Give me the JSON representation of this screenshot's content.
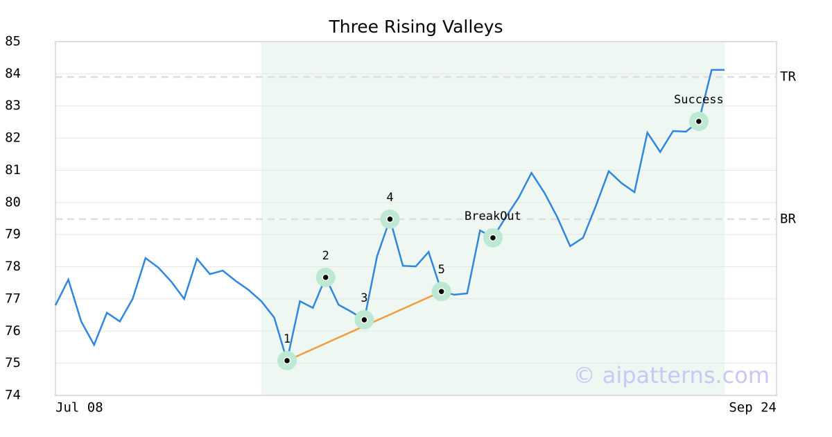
{
  "chart_data": {
    "type": "line",
    "title": "Three Rising Valleys",
    "categories": [
      "Jul 08",
      null,
      null,
      null,
      null,
      null,
      null,
      null,
      null,
      null,
      null,
      null,
      null,
      null,
      null,
      null,
      null,
      null,
      null,
      null,
      null,
      null,
      null,
      null,
      null,
      null,
      null,
      null,
      null,
      null,
      null,
      null,
      null,
      null,
      null,
      null,
      null,
      null,
      null,
      null,
      null,
      null,
      null,
      null,
      null,
      null,
      null,
      null,
      null,
      null,
      null,
      null,
      "Sep 24"
    ],
    "values": [
      76.8,
      77.6,
      76.3,
      75.57,
      76.57,
      76.3,
      77.0,
      78.27,
      77.97,
      77.54,
      77.0,
      78.25,
      77.77,
      77.88,
      77.56,
      77.28,
      76.93,
      76.42,
      75.08,
      76.93,
      76.72,
      77.67,
      76.82,
      76.6,
      76.35,
      78.33,
      79.48,
      78.03,
      78.01,
      78.46,
      77.23,
      77.13,
      77.17,
      79.13,
      78.9,
      79.54,
      80.15,
      80.92,
      80.3,
      79.54,
      78.64,
      78.9,
      79.89,
      80.97,
      80.6,
      80.32,
      82.17,
      81.57,
      82.22,
      82.2,
      82.52,
      84.12,
      84.12
    ],
    "color": "#2e86de",
    "ylim": [
      74,
      85
    ],
    "yticks": [
      74,
      75,
      76,
      77,
      78,
      79,
      80,
      81,
      82,
      83,
      84,
      85
    ],
    "grid": true,
    "pattern_range": [
      16,
      52
    ],
    "levels": [
      {
        "value": 83.9,
        "label": "TR"
      },
      {
        "value": 79.48,
        "label": "BR"
      }
    ],
    "annotations": [
      {
        "index": 18,
        "label": "1"
      },
      {
        "index": 21,
        "label": "2"
      },
      {
        "index": 24,
        "label": "3"
      },
      {
        "index": 26,
        "label": "4"
      },
      {
        "index": 30,
        "label": "5"
      },
      {
        "index": 34,
        "label": "BreakOut"
      },
      {
        "index": 50,
        "label": "Success"
      }
    ],
    "trendline": [
      18,
      30
    ],
    "trend_color": "#f39c3c",
    "watermark": "© aipatterns.com"
  }
}
